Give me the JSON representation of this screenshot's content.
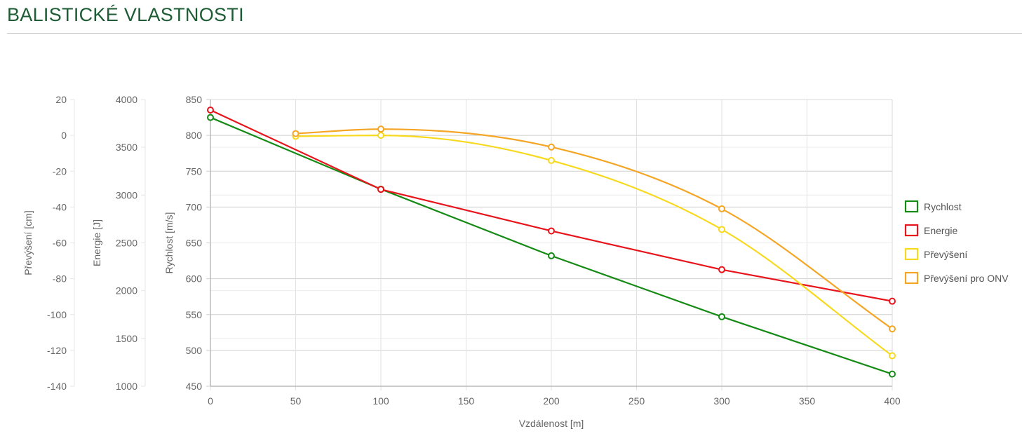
{
  "page": {
    "title": "BALISTICKÉ VLASTNOSTI"
  },
  "chart_data": {
    "type": "line",
    "xlabel": "Vzdálenost [m]",
    "x_ticks": [
      0,
      50,
      100,
      150,
      200,
      250,
      300,
      350,
      400
    ],
    "xlim": [
      0,
      400
    ],
    "grid": true,
    "legend_position": "right",
    "axes": [
      {
        "id": "prevyseni",
        "label": "Převýšení [cm]",
        "ylim": [
          -140,
          20
        ],
        "ticks": [
          20,
          0,
          -20,
          -40,
          -60,
          -80,
          -100,
          -120,
          -140
        ]
      },
      {
        "id": "energie",
        "label": "Energie [J]",
        "ylim": [
          1000,
          4000
        ],
        "ticks": [
          4000,
          3500,
          3000,
          2500,
          2000,
          1500,
          1000
        ]
      },
      {
        "id": "rychlost",
        "label": "Rychlost [m/s]",
        "ylim": [
          450,
          850
        ],
        "ticks": [
          850,
          800,
          750,
          700,
          650,
          600,
          550,
          500,
          450
        ]
      }
    ],
    "series": [
      {
        "name": "Rychlost",
        "axis": "rychlost",
        "color": "#158a15",
        "smooth": false,
        "points": [
          [
            0,
            825
          ],
          [
            100,
            725
          ],
          [
            200,
            632
          ],
          [
            300,
            547
          ],
          [
            400,
            467
          ]
        ]
      },
      {
        "name": "Energie",
        "axis": "energie",
        "color": "#e8141b",
        "smooth": false,
        "points": [
          [
            0,
            3890
          ],
          [
            100,
            3060
          ],
          [
            200,
            2625
          ],
          [
            300,
            2220
          ],
          [
            400,
            1890
          ]
        ]
      },
      {
        "name": "Převýšení",
        "axis": "prevyseni",
        "color": "#f7d91f",
        "smooth": true,
        "points": [
          [
            50,
            -0.5
          ],
          [
            100,
            0
          ],
          [
            200,
            -14
          ],
          [
            300,
            -52.5
          ],
          [
            400,
            -123
          ]
        ]
      },
      {
        "name": "Převýšení pro ONV",
        "axis": "prevyseni",
        "color": "#f5a524",
        "smooth": true,
        "points": [
          [
            50,
            1
          ],
          [
            100,
            3.5
          ],
          [
            200,
            -6.5
          ],
          [
            300,
            -41
          ],
          [
            400,
            -108
          ]
        ]
      }
    ]
  }
}
